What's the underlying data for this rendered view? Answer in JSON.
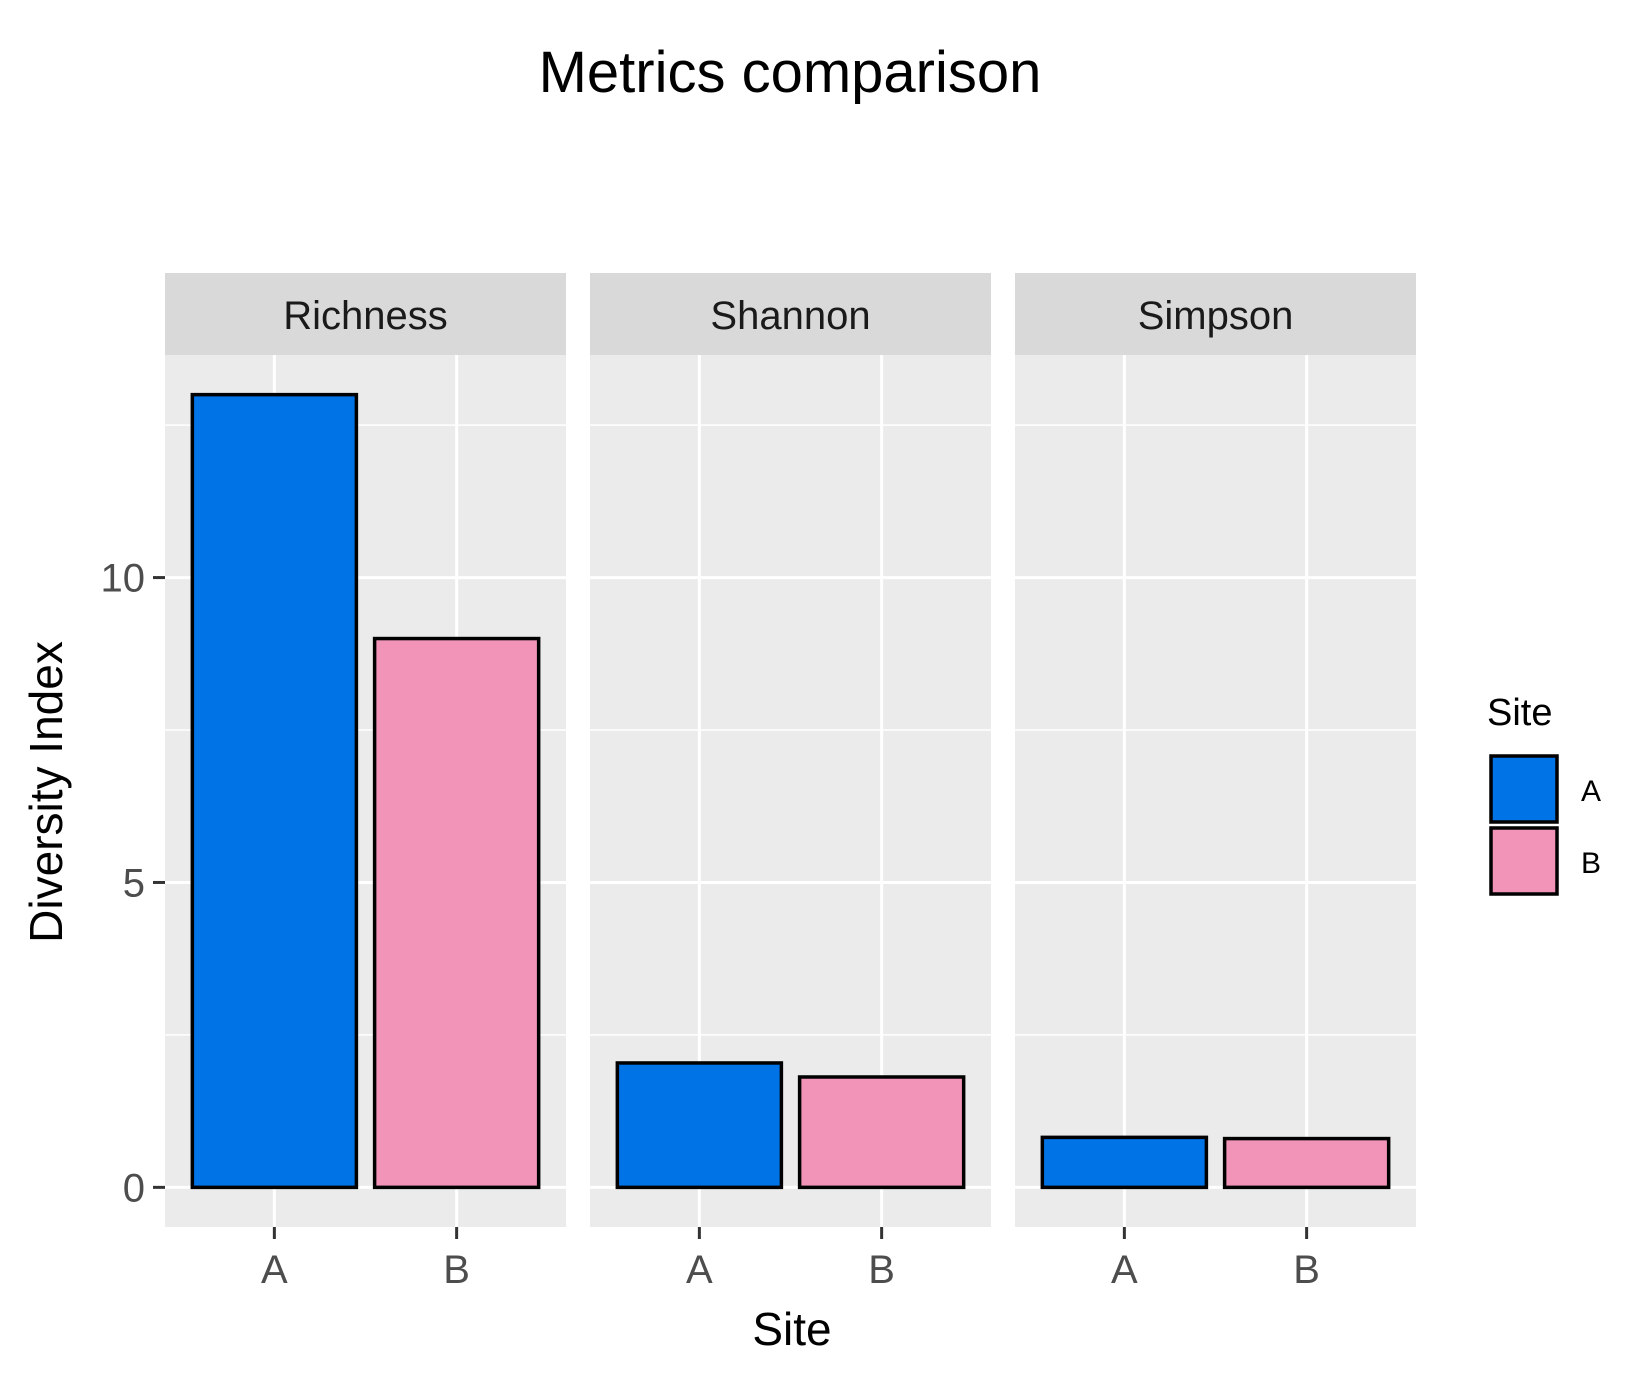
{
  "chart_data": {
    "type": "bar",
    "title": "Metrics comparison",
    "xlabel": "Site",
    "ylabel": "Diversity Index",
    "facets": [
      "Richness",
      "Shannon",
      "Simpson"
    ],
    "categories": [
      "A",
      "B"
    ],
    "series": [
      {
        "name": "A",
        "facet_values": [
          13,
          2.04,
          0.82
        ]
      },
      {
        "name": "B",
        "facet_values": [
          9,
          1.81,
          0.8
        ]
      }
    ],
    "ylim": [
      -0.65,
      13.65
    ],
    "yticks": [
      0,
      5,
      10
    ],
    "grid": true,
    "legend": {
      "title": "Site",
      "position": "right",
      "entries": [
        "A",
        "B"
      ]
    },
    "colors": {
      "A": "#0073e6",
      "B": "#f194b8"
    }
  }
}
